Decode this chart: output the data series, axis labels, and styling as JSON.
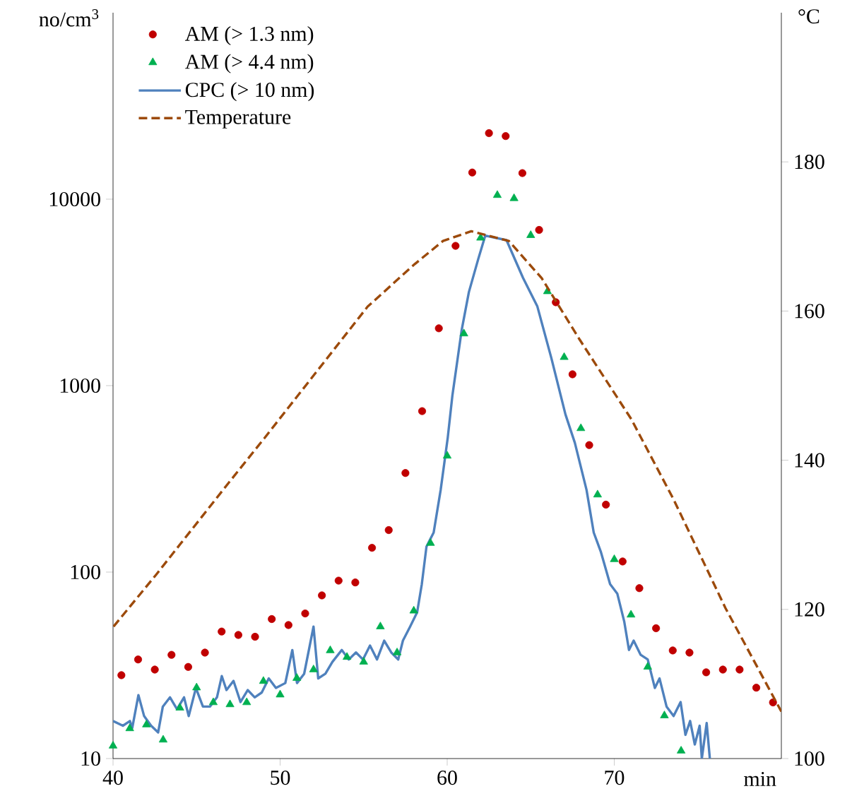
{
  "chart_data": {
    "type": "scatter",
    "xlabel": "min",
    "ylabel": "no/cm$^{3}$",
    "y2label": "°C",
    "xlim": [
      40,
      80
    ],
    "xticks": [
      40,
      50,
      60,
      70
    ],
    "ylim": [
      10,
      100000
    ],
    "yticks": [
      10,
      100,
      1000,
      10000
    ],
    "log": "y",
    "y2lim": [
      100,
      200
    ],
    "y2ticks": [
      100,
      120,
      140,
      160,
      180
    ],
    "legend": "top left",
    "series": [
      {
        "name": "AM  (> 1.3 nm)",
        "marker": "circle",
        "color": "#c00000",
        "x": [
          40.5,
          41.5,
          42.5,
          43.5,
          44.5,
          45.5,
          46.5,
          47.5,
          48.5,
          49.5,
          50.5,
          51.5,
          52.5,
          53.5,
          54.5,
          55.5,
          56.5,
          57.5,
          58.5,
          59.5,
          60.5,
          61.5,
          62.5,
          63.5,
          64.5,
          65.5,
          66.5,
          67.5,
          68.5,
          69.5,
          70.5,
          71.5,
          72.5,
          73.5,
          74.5,
          75.5,
          76.5,
          77.5,
          78.5,
          79.5
        ],
        "values": [
          28,
          34,
          30,
          36,
          31,
          37,
          48,
          46,
          45,
          56,
          52,
          60,
          75,
          90,
          88,
          135,
          168,
          340,
          730,
          2030,
          5620,
          13900,
          22600,
          21800,
          13800,
          6840,
          2800,
          1150,
          480,
          230,
          114,
          82,
          50,
          38,
          37,
          29,
          30,
          30,
          24,
          20
        ]
      },
      {
        "name": "AM  (> 4.4 nm)",
        "marker": "triangle",
        "color": "#00b050",
        "x": [
          40,
          41,
          42,
          43,
          44,
          45,
          46,
          47,
          48,
          49,
          50,
          51,
          52,
          53,
          54,
          55,
          56,
          57,
          58,
          59,
          60,
          61,
          62,
          63,
          64,
          65,
          66,
          67,
          68,
          69,
          70,
          71,
          72,
          73,
          74
        ],
        "values": [
          11.7,
          14.5,
          15.2,
          12.6,
          18.7,
          24,
          20,
          19.5,
          20,
          26,
          22,
          27,
          30,
          38,
          35,
          33,
          51,
          37,
          62,
          143,
          420,
          1900,
          6200,
          10500,
          10100,
          6400,
          3200,
          1420,
          590,
          260,
          117,
          59,
          31,
          17,
          11
        ]
      },
      {
        "name": "CPC (> 10  nm)",
        "type": "line",
        "marker": "none",
        "line_style": "solid",
        "color": "#4f81bd",
        "x": [
          40.0,
          40.59,
          41.01,
          41.15,
          41.52,
          41.86,
          42.28,
          42.7,
          42.98,
          43.41,
          43.83,
          44.25,
          44.53,
          44.96,
          45.38,
          45.8,
          46.22,
          46.51,
          46.79,
          47.21,
          47.63,
          48.06,
          48.48,
          48.9,
          49.32,
          49.75,
          50.31,
          50.73,
          51.01,
          51.44,
          52.0,
          52.28,
          52.71,
          53.13,
          53.69,
          54.11,
          54.54,
          54.96,
          55.38,
          55.8,
          56.23,
          56.65,
          57.07,
          57.35,
          57.78,
          58.2,
          58.48,
          58.76,
          59.19,
          59.61,
          60.03,
          60.31,
          60.87,
          61.3,
          61.86,
          62.28,
          63.55,
          64.54,
          65.39,
          66.23,
          67.08,
          67.64,
          68.34,
          68.77,
          69.19,
          69.75,
          70.18,
          70.6,
          70.88,
          71.16,
          71.58,
          72.0,
          72.43,
          72.71,
          73.13,
          73.55,
          73.97,
          74.26,
          74.54,
          74.82,
          75.11,
          75.24,
          75.53,
          75.72
        ],
        "values": [
          15.9,
          15.0,
          15.9,
          14.6,
          21.9,
          16.9,
          15.0,
          13.8,
          19.0,
          21.3,
          18.4,
          21.3,
          16.9,
          23.9,
          19.0,
          19.0,
          21.3,
          27.7,
          23.3,
          26.1,
          20.1,
          23.3,
          21.3,
          22.6,
          26.9,
          23.9,
          25.4,
          38.2,
          25.4,
          28.5,
          51.0,
          26.9,
          28.5,
          33.0,
          38.2,
          34.0,
          37.1,
          34.0,
          40.4,
          34.0,
          42.9,
          37.1,
          34.0,
          42.9,
          51.0,
          60.8,
          86.1,
          137,
          163,
          276,
          523,
          883,
          1995,
          3180,
          4780,
          6380,
          6030,
          3780,
          2670,
          1410,
          700,
          494,
          276,
          163,
          129,
          86.2,
          76.7,
          54.1,
          38.2,
          42.9,
          36.0,
          34.0,
          23.9,
          26.9,
          19.0,
          16.9,
          20.1,
          13.4,
          15.9,
          11.9,
          15.0,
          10,
          15.5,
          10
        ]
      },
      {
        "name": "Temperature",
        "type": "line",
        "axis": "y2",
        "marker": "none",
        "line_style": "dashed",
        "color": "#9c4a0b",
        "x": [
          40.03,
          42.56,
          46.79,
          49.04,
          55.24,
          58.06,
          59.75,
          61.44,
          63.69,
          65.66,
          67.92,
          71.02,
          73.56,
          76.65,
          80
        ],
        "values": [
          117.7,
          124.6,
          136.6,
          142.9,
          160.6,
          166.3,
          169.4,
          170.7,
          169.4,
          164.4,
          156.2,
          145.5,
          134.7,
          120.2,
          106.3
        ]
      }
    ]
  }
}
